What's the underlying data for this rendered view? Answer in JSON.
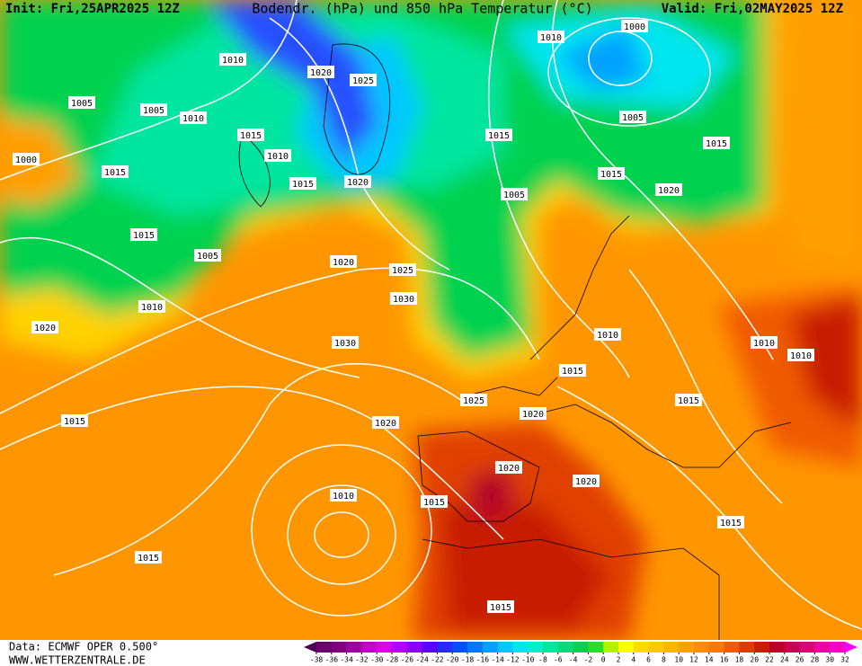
{
  "header": {
    "init": "Init: Fri,25APR2025 12Z",
    "title": "Bodendr. (hPa) und 850 hPa Temperatur (°C)",
    "valid": "Valid: Fri,02MAY2025 12Z"
  },
  "footer": {
    "data": "Data: ECMWF OPER 0.500°",
    "website": "WWW.WETTERZENTRALE.DE"
  },
  "colorbar": {
    "ticks": [
      -38,
      -36,
      -34,
      -32,
      -30,
      -28,
      -26,
      -24,
      -22,
      -20,
      -18,
      -16,
      -14,
      -12,
      -10,
      -8,
      -6,
      -4,
      -2,
      0,
      2,
      4,
      6,
      8,
      10,
      12,
      14,
      16,
      18,
      20,
      22,
      24,
      26,
      28,
      30,
      32
    ],
    "colors": [
      "#4b0050",
      "#6a006e",
      "#800080",
      "#a000a0",
      "#c000c8",
      "#dc00e6",
      "#b400ff",
      "#8c00ff",
      "#5a00ff",
      "#2828ff",
      "#0050ff",
      "#0078ff",
      "#00a0ff",
      "#00c8ff",
      "#00e6f0",
      "#00f0c8",
      "#00e6a0",
      "#00dc78",
      "#00d250",
      "#28dc28",
      "#b4f000",
      "#ffff00",
      "#ffdc00",
      "#ffc800",
      "#ffb400",
      "#ffa000",
      "#ff8c00",
      "#ff7800",
      "#f05a00",
      "#dc3c00",
      "#c81e00",
      "#b40028",
      "#c80050",
      "#dc0078",
      "#f000a0",
      "#ff00c8",
      "#ff00ff"
    ]
  },
  "isobar_labels": [
    "1010",
    "1010",
    "1000",
    "1020",
    "1025",
    "1005",
    "1005",
    "1010",
    "1015",
    "1015",
    "1010",
    "1015",
    "1020",
    "1000",
    "1015",
    "1005",
    "1015",
    "1005",
    "1015",
    "1020",
    "1025",
    "1030",
    "1030",
    "1010",
    "1020",
    "1010",
    "1015",
    "1025",
    "1020",
    "1020",
    "1015",
    "1010",
    "1010",
    "1015",
    "1020",
    "1010",
    "1015",
    "1020",
    "1015",
    "1015",
    "1015",
    "1005",
    "1015",
    "1020"
  ]
}
